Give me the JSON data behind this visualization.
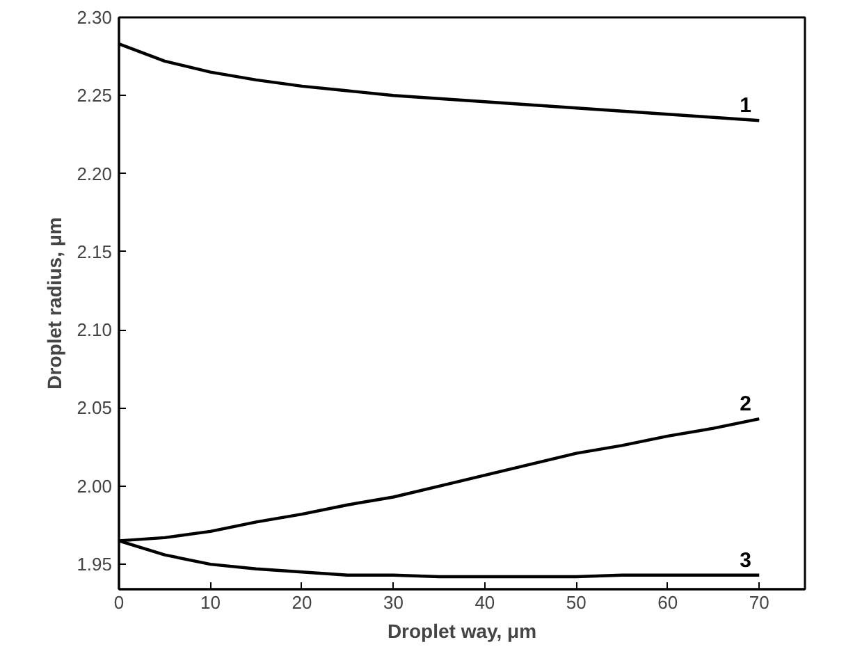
{
  "chart_data": {
    "type": "line",
    "xlabel": "Droplet way, μm",
    "ylabel": "Droplet radius, μm",
    "xlim": [
      0,
      75
    ],
    "ylim": [
      1.934,
      2.3
    ],
    "xticks": [
      0,
      10,
      20,
      30,
      40,
      50,
      60,
      70
    ],
    "yticks": [
      1.95,
      {
        "value": 2.0,
        "label": "2.00"
      },
      2.05,
      {
        "value": 2.1,
        "label": "2.10"
      },
      2.15,
      {
        "value": 2.2,
        "label": "2.20"
      },
      2.25,
      {
        "value": 2.3,
        "label": "2.30"
      }
    ],
    "grid": false,
    "line_style": "solid",
    "marker": "none",
    "x": [
      0,
      5,
      10,
      15,
      20,
      25,
      30,
      35,
      40,
      45,
      50,
      55,
      60,
      65,
      70
    ],
    "series": [
      {
        "name": "1",
        "color": "#000000",
        "values": [
          2.283,
          2.272,
          2.265,
          2.26,
          2.256,
          2.253,
          2.25,
          2.248,
          2.246,
          2.244,
          2.242,
          2.24,
          2.238,
          2.236,
          2.234
        ]
      },
      {
        "name": "2",
        "color": "#000000",
        "values": [
          1.965,
          1.967,
          1.971,
          1.977,
          1.982,
          1.988,
          1.993,
          2.0,
          2.007,
          2.014,
          2.021,
          2.026,
          2.032,
          2.037,
          2.043
        ]
      },
      {
        "name": "3",
        "color": "#000000",
        "values": [
          1.965,
          1.956,
          1.95,
          1.947,
          1.945,
          1.943,
          1.943,
          1.942,
          1.942,
          1.942,
          1.942,
          1.943,
          1.943,
          1.943,
          1.943
        ]
      }
    ]
  }
}
